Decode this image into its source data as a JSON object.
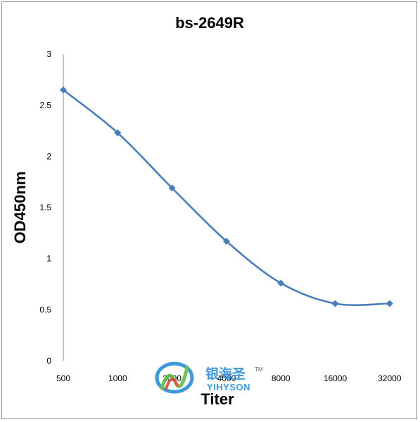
{
  "chart_data": {
    "type": "line",
    "title": "bs-2649R",
    "xlabel": "Titer",
    "ylabel": "OD450nm",
    "categories": [
      "500",
      "1000",
      "2000",
      "4000",
      "8000",
      "16000",
      "32000"
    ],
    "series": [
      {
        "values": [
          2.65,
          2.23,
          1.69,
          1.17,
          0.76,
          0.56,
          0.56
        ],
        "color": "#4a7ebb"
      }
    ],
    "ylim": [
      0,
      3
    ],
    "yticks": [
      0,
      0.5,
      1,
      1.5,
      2,
      2.5,
      3
    ],
    "ytick_labels": [
      "0",
      "0.5",
      "1",
      "1.5",
      "2",
      "2.5",
      "3"
    ],
    "grid": false,
    "legend": "none",
    "marker": "diamond",
    "smooth": true
  },
  "watermark": {
    "text_cn": "银海圣",
    "text_en": "YIHYSON",
    "tm": "TM",
    "colors": {
      "blue": "#2a8fd6",
      "green": "#5dbb46",
      "red": "#e04a3a"
    }
  }
}
